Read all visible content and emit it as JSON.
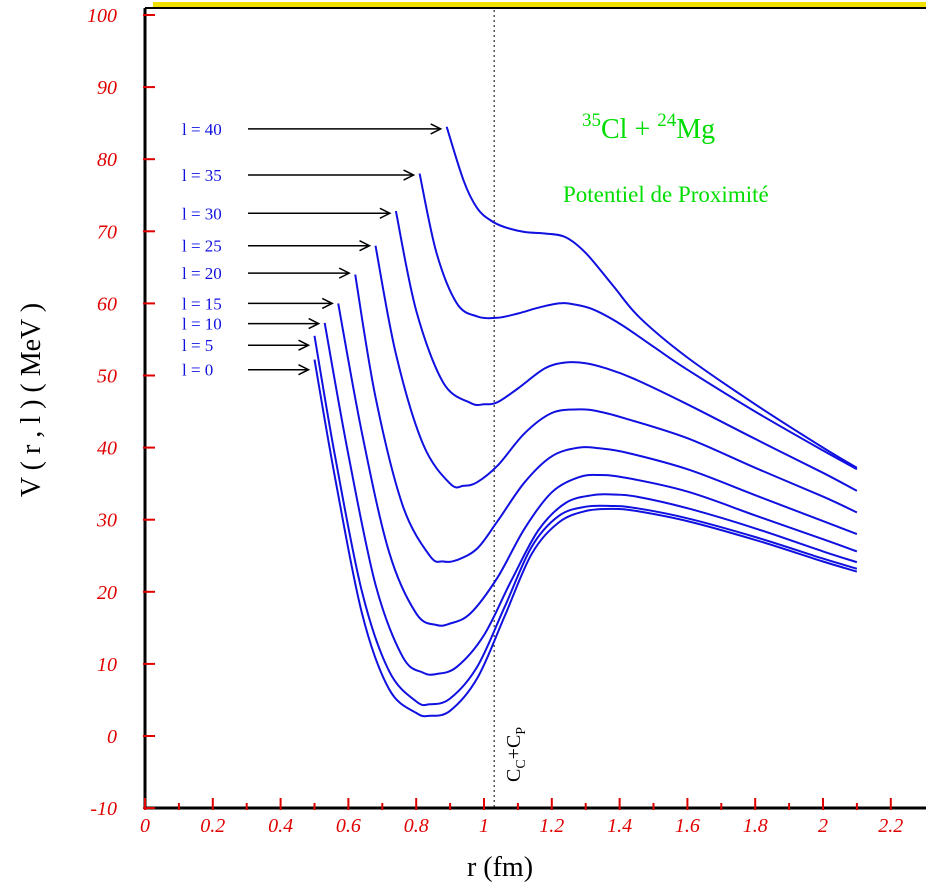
{
  "chart_data": {
    "type": "line",
    "title": "",
    "xlabel": "r (fm)",
    "ylabel": "V ( r , l ) ( MeV )",
    "xlim": [
      0,
      2.3
    ],
    "ylim": [
      -10,
      100
    ],
    "x_ticks": [
      0,
      0.2,
      0.4,
      0.6,
      0.8,
      1,
      1.2,
      1.4,
      1.6,
      1.8,
      2,
      2.2
    ],
    "x_tick_labels": [
      "0",
      "0.2",
      "0.4",
      "0.6",
      "0.8",
      "1",
      "1.2",
      "1.4",
      "1.6",
      "1.8",
      "2",
      "2.2"
    ],
    "y_ticks": [
      -10,
      0,
      10,
      20,
      30,
      40,
      50,
      60,
      70,
      80,
      90,
      100
    ],
    "y_tick_labels": [
      "-10",
      "0",
      "10",
      "20",
      "30",
      "40",
      "50",
      "60",
      "70",
      "80",
      "90",
      "100"
    ],
    "grid": false,
    "series_color": "#1010e0",
    "tick_label_color": "#e00000",
    "annotation_color": "#00dd00",
    "reaction": {
      "z1": "35",
      "e1": "Cl + ",
      "z2": "24",
      "e2": "Mg"
    },
    "potential_label": "Potentiel de Proximité",
    "vline": {
      "x": 1.03,
      "label_main1": "C",
      "label_sub1": "C",
      "label_plus": "+",
      "label_main2": "C",
      "label_sub2": "P"
    },
    "series": [
      {
        "label": "l = 0",
        "label_y": 50.8,
        "x": [
          0.5,
          0.56,
          0.64,
          0.72,
          0.8,
          0.84,
          0.9,
          0.98,
          1.06,
          1.14,
          1.22,
          1.3,
          1.38,
          1.45,
          1.6,
          1.8,
          2.0,
          2.1
        ],
        "y": [
          52.2,
          36,
          17,
          6.5,
          3.2,
          2.8,
          3.5,
          8,
          16.5,
          25.2,
          29.6,
          31.2,
          31.5,
          31.2,
          29.8,
          27.2,
          24.2,
          22.8
        ]
      },
      {
        "label": "l = 5",
        "label_y": 54.2,
        "x": [
          0.5,
          0.56,
          0.64,
          0.72,
          0.8,
          0.84,
          0.9,
          0.98,
          1.06,
          1.14,
          1.22,
          1.3,
          1.38,
          1.45,
          1.6,
          1.8,
          2.0,
          2.1
        ],
        "y": [
          55.5,
          39,
          20,
          9,
          4.8,
          4.4,
          5.2,
          9.6,
          17.8,
          26.2,
          30.5,
          31.8,
          31.9,
          31.6,
          30.2,
          27.6,
          24.6,
          23.2
        ]
      },
      {
        "label": "l = 10",
        "label_y": 57.2,
        "x": [
          0.53,
          0.6,
          0.68,
          0.76,
          0.82,
          0.86,
          0.92,
          1.0,
          1.08,
          1.16,
          1.24,
          1.32,
          1.38,
          1.45,
          1.6,
          1.8,
          2.0,
          2.1
        ],
        "y": [
          57.3,
          39,
          21,
          11,
          8.8,
          8.6,
          9.6,
          14,
          21.5,
          28.5,
          32.3,
          33.4,
          33.5,
          33.2,
          31.6,
          28.8,
          25.6,
          24.1
        ]
      },
      {
        "label": "l = 15",
        "label_y": 60.0,
        "x": [
          0.57,
          0.64,
          0.72,
          0.8,
          0.86,
          0.9,
          0.96,
          1.04,
          1.12,
          1.2,
          1.28,
          1.34,
          1.42,
          1.6,
          1.8,
          2.0,
          2.1
        ],
        "y": [
          60,
          42,
          25.5,
          17,
          15.4,
          15.6,
          17,
          22,
          28.8,
          33.8,
          35.9,
          36.2,
          35.8,
          33.9,
          30.6,
          27.3,
          25.6
        ]
      },
      {
        "label": "l = 20",
        "label_y": 64.2,
        "x": [
          0.62,
          0.68,
          0.76,
          0.84,
          0.88,
          0.92,
          0.98,
          1.04,
          1.12,
          1.2,
          1.28,
          1.34,
          1.42,
          1.6,
          1.8,
          2.0,
          2.1
        ],
        "y": [
          64,
          47,
          32,
          25,
          24.2,
          24.4,
          26,
          29.8,
          35.2,
          38.8,
          40,
          39.9,
          39.3,
          37,
          33.4,
          29.8,
          28
        ]
      },
      {
        "label": "l = 25",
        "label_y": 68.0,
        "x": [
          0.68,
          0.74,
          0.82,
          0.9,
          0.94,
          0.98,
          1.04,
          1.12,
          1.2,
          1.28,
          1.34,
          1.42,
          1.6,
          1.8,
          2.0,
          2.1
        ],
        "y": [
          68,
          53,
          40.5,
          35,
          34.7,
          35.2,
          37.5,
          42,
          44.8,
          45.3,
          45,
          44,
          41.3,
          37.2,
          33.2,
          31
        ]
      },
      {
        "label": "l = 30",
        "label_y": 72.5,
        "x": [
          0.74,
          0.8,
          0.88,
          0.96,
          1.0,
          1.04,
          1.1,
          1.18,
          1.24,
          1.3,
          1.36,
          1.44,
          1.6,
          1.8,
          2.0,
          2.1
        ],
        "y": [
          72.8,
          59,
          49,
          46.2,
          46,
          46.3,
          48.2,
          51,
          51.8,
          51.7,
          51,
          49.6,
          46,
          41.2,
          36.5,
          34
        ]
      },
      {
        "label": "l = 35",
        "label_y": 77.8,
        "x": [
          0.81,
          0.86,
          0.92,
          0.98,
          1.04,
          1.1,
          1.16,
          1.22,
          1.26,
          1.32,
          1.4,
          1.5,
          1.6,
          1.8,
          2.0,
          2.1
        ],
        "y": [
          78,
          67,
          60,
          58.2,
          58,
          58.6,
          59.4,
          60,
          59.9,
          59.2,
          57.2,
          54,
          50.8,
          45,
          39.6,
          37
        ]
      },
      {
        "label": "l = 40",
        "label_y": 84.2,
        "x": [
          0.89,
          0.94,
          0.98,
          1.02,
          1.06,
          1.12,
          1.18,
          1.24,
          1.3,
          1.38,
          1.46,
          1.6,
          1.8,
          2.0,
          2.1
        ],
        "y": [
          84.5,
          77,
          73.2,
          71.5,
          70.6,
          69.9,
          69.7,
          69.2,
          67,
          62.5,
          58,
          52.5,
          46,
          40,
          37.2
        ]
      }
    ]
  }
}
